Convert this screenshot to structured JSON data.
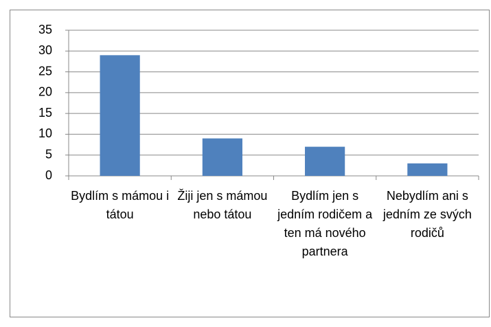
{
  "chart_data": {
    "type": "bar",
    "categories": [
      "Bydlím s mámou i tátou",
      "Žiji jen s mámou nebo tátou",
      "Bydlím jen s jedním rodičem a ten má nového partnera",
      "Nebydlím ani s jedním ze svých rodičů"
    ],
    "values": [
      29,
      9,
      7,
      3
    ],
    "color": "#4f81bd",
    "ylim": [
      0,
      35
    ],
    "yticks": [
      0,
      5,
      10,
      15,
      20,
      25,
      30,
      35
    ],
    "grid": true
  }
}
